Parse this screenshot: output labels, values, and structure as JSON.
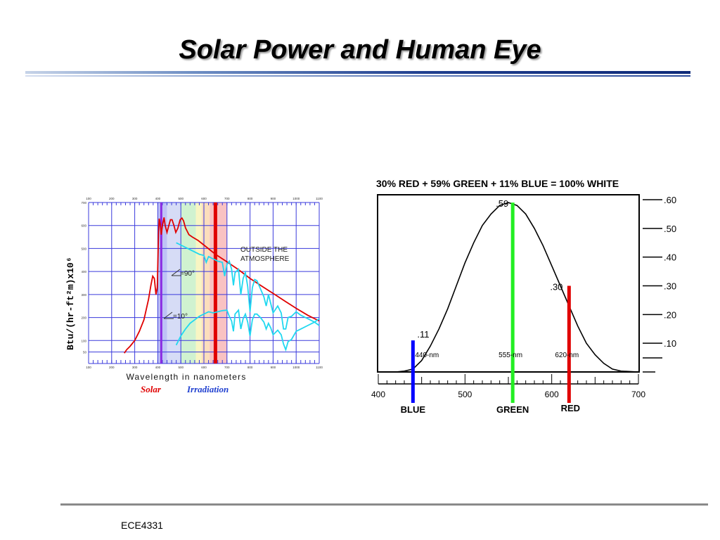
{
  "slide": {
    "title": "Solar Power and Human Eye",
    "footer": "ECE4331"
  },
  "colors": {
    "grid": "#3a3adc",
    "outside_curve": "#e00000",
    "sea_level_curves": "#20d8f0",
    "eye_curve": "#000000",
    "blue_line": "#0000ff",
    "green_line": "#22ee22",
    "red_line": "#e00000",
    "solar_caption": "#e00000",
    "irradiation_caption": "#2040d0"
  },
  "chart_data": [
    {
      "type": "line",
      "xlabel": "Wavelength in nanometers",
      "ylabel": "Btu/(hr-ft²m)x10⁶",
      "caption_word1": "Solar",
      "caption_word2": "Irradiation",
      "xlim": [
        100,
        1100
      ],
      "ylim": [
        0,
        700
      ],
      "x_ticks": [
        "100",
        "200",
        "300",
        "400",
        "500",
        "600",
        "700",
        "800",
        "900",
        "1000",
        "1100"
      ],
      "y_ticks": [
        "50",
        "100",
        "200",
        "300",
        "400",
        "500",
        "600",
        "700"
      ],
      "grid": true,
      "annotations": {
        "outside": "OUTSIDE THE ATMOSPHERE",
        "angle90": "=90°",
        "angle10": "=10°"
      },
      "bands": [
        {
          "from": 400,
          "to": 440,
          "color": "#b3b8f5"
        },
        {
          "from": 440,
          "to": 500,
          "color": "#cfd6f5"
        },
        {
          "from": 500,
          "to": 565,
          "color": "#c8f0c8"
        },
        {
          "from": 565,
          "to": 590,
          "color": "#f7f3b8"
        },
        {
          "from": 590,
          "to": 625,
          "color": "#fbd8b0"
        },
        {
          "from": 625,
          "to": 700,
          "color": "#f8b7b7"
        }
      ],
      "marker_lines": [
        {
          "x": 415,
          "color": "#8a2be2"
        },
        {
          "x": 650,
          "color": "#e00000"
        }
      ],
      "series": [
        {
          "key": "outside",
          "color": "#e00000",
          "points": [
            [
              255,
              45
            ],
            [
              265,
              60
            ],
            [
              280,
              75
            ],
            [
              300,
              100
            ],
            [
              320,
              140
            ],
            [
              340,
              190
            ],
            [
              360,
              280
            ],
            [
              370,
              340
            ],
            [
              378,
              380
            ],
            [
              385,
              370
            ],
            [
              392,
              300
            ],
            [
              398,
              330
            ],
            [
              403,
              560
            ],
            [
              406,
              630
            ],
            [
              410,
              610
            ],
            [
              415,
              560
            ],
            [
              420,
              600
            ],
            [
              427,
              635
            ],
            [
              432,
              600
            ],
            [
              440,
              570
            ],
            [
              448,
              600
            ],
            [
              455,
              625
            ],
            [
              462,
              625
            ],
            [
              470,
              600
            ],
            [
              478,
              570
            ],
            [
              487,
              588
            ],
            [
              497,
              625
            ],
            [
              505,
              632
            ],
            [
              512,
              620
            ],
            [
              520,
              590
            ],
            [
              535,
              560
            ],
            [
              550,
              550
            ],
            [
              575,
              535
            ],
            [
              600,
              515
            ],
            [
              650,
              475
            ],
            [
              700,
              442
            ],
            [
              750,
              408
            ],
            [
              800,
              370
            ],
            [
              850,
              337
            ],
            [
              900,
              305
            ],
            [
              950,
              272
            ],
            [
              1000,
              240
            ],
            [
              1050,
              210
            ],
            [
              1100,
              185
            ]
          ]
        },
        {
          "key": "sea_level_90",
          "color": "#20d8f0",
          "points": [
            [
              480,
              525
            ],
            [
              500,
              515
            ],
            [
              520,
              505
            ],
            [
              540,
              495
            ],
            [
              560,
              485
            ],
            [
              580,
              475
            ],
            [
              600,
              470
            ],
            [
              610,
              440
            ],
            [
              620,
              465
            ],
            [
              640,
              455
            ],
            [
              660,
              445
            ],
            [
              680,
              440
            ],
            [
              690,
              380
            ],
            [
              700,
              430
            ],
            [
              710,
              445
            ],
            [
              720,
              410
            ],
            [
              728,
              340
            ],
            [
              735,
              395
            ],
            [
              750,
              410
            ],
            [
              760,
              300
            ],
            [
              770,
              370
            ],
            [
              780,
              395
            ],
            [
              790,
              335
            ],
            [
              800,
              225
            ],
            [
              810,
              330
            ],
            [
              820,
              365
            ],
            [
              830,
              360
            ],
            [
              845,
              325
            ],
            [
              860,
              290
            ],
            [
              870,
              250
            ],
            [
              880,
              300
            ],
            [
              890,
              260
            ],
            [
              900,
              220
            ],
            [
              920,
              250
            ],
            [
              935,
              220
            ],
            [
              945,
              150
            ],
            [
              955,
              150
            ],
            [
              965,
              200
            ],
            [
              980,
              205
            ],
            [
              1000,
              225
            ],
            [
              1020,
              210
            ],
            [
              1050,
              195
            ],
            [
              1080,
              180
            ],
            [
              1100,
              165
            ]
          ]
        },
        {
          "key": "sea_level_10",
          "color": "#20d8f0",
          "points": [
            [
              480,
              80
            ],
            [
              500,
              120
            ],
            [
              520,
              150
            ],
            [
              540,
              175
            ],
            [
              560,
              190
            ],
            [
              580,
              205
            ],
            [
              600,
              215
            ],
            [
              620,
              225
            ],
            [
              640,
              220
            ],
            [
              660,
              225
            ],
            [
              680,
              230
            ],
            [
              700,
              232
            ],
            [
              710,
              205
            ],
            [
              720,
              185
            ],
            [
              728,
              140
            ],
            [
              735,
              215
            ],
            [
              750,
              232
            ],
            [
              760,
              150
            ],
            [
              770,
              195
            ],
            [
              780,
              215
            ],
            [
              790,
              180
            ],
            [
              800,
              120
            ],
            [
              810,
              190
            ],
            [
              820,
              215
            ],
            [
              830,
              215
            ],
            [
              845,
              200
            ],
            [
              860,
              180
            ],
            [
              870,
              150
            ],
            [
              880,
              175
            ],
            [
              890,
              155
            ],
            [
              900,
              125
            ],
            [
              920,
              145
            ],
            [
              935,
              125
            ],
            [
              945,
              85
            ],
            [
              955,
              60
            ],
            [
              965,
              95
            ],
            [
              980,
              105
            ],
            [
              1000,
              140
            ],
            [
              1020,
              150
            ],
            [
              1050,
              165
            ],
            [
              1080,
              180
            ],
            [
              1100,
              195
            ]
          ]
        }
      ]
    },
    {
      "type": "line",
      "title": "30% RED + 59% GREEN + 11% BLUE = 100% WHITE",
      "xlim": [
        400,
        700
      ],
      "ylim": [
        0,
        0.6
      ],
      "x_ticks": [
        "400",
        "500",
        "600",
        "700"
      ],
      "y_ticks": [
        ".60",
        ".50",
        ".40",
        ".30",
        ".20",
        ".10"
      ],
      "curve": [
        [
          400,
          0
        ],
        [
          420,
          0
        ],
        [
          430,
          0.003
        ],
        [
          440,
          0.01
        ],
        [
          450,
          0.04
        ],
        [
          460,
          0.09
        ],
        [
          470,
          0.15
        ],
        [
          480,
          0.22
        ],
        [
          490,
          0.3
        ],
        [
          500,
          0.38
        ],
        [
          510,
          0.45
        ],
        [
          520,
          0.51
        ],
        [
          530,
          0.55
        ],
        [
          540,
          0.58
        ],
        [
          550,
          0.59
        ],
        [
          560,
          0.58
        ],
        [
          570,
          0.55
        ],
        [
          580,
          0.5
        ],
        [
          590,
          0.44
        ],
        [
          600,
          0.37
        ],
        [
          610,
          0.3
        ],
        [
          620,
          0.23
        ],
        [
          630,
          0.16
        ],
        [
          640,
          0.1
        ],
        [
          650,
          0.06
        ],
        [
          660,
          0.03
        ],
        [
          670,
          0.01
        ],
        [
          680,
          0.003
        ],
        [
          700,
          0
        ]
      ],
      "lines": [
        {
          "name": "BLUE",
          "wavelength": 440,
          "wavelength_label": "440-nm",
          "value_label": ".11",
          "color": "#0000ff",
          "top": 0.11
        },
        {
          "name": "GREEN",
          "wavelength": 555,
          "wavelength_label": "555-nm",
          "value_label": ".59",
          "color": "#22ee22",
          "top": 0.59
        },
        {
          "name": "RED",
          "wavelength": 620,
          "wavelength_label": "620-nm",
          "value_label": ".30",
          "color": "#e00000",
          "top": 0.3
        }
      ]
    }
  ]
}
